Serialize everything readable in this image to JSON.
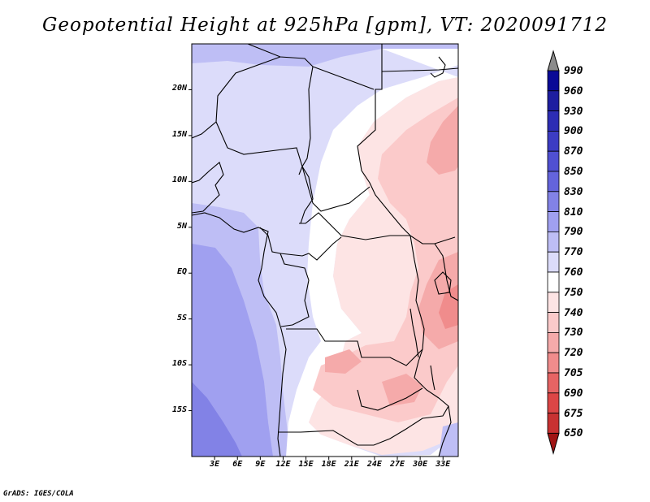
{
  "title": "Geopotential Height at 925hPa [gpm], VT: 2020091712",
  "credit": "GrADS: IGES/COLA",
  "lat_labels": [
    {
      "text": "20N",
      "lat": 20
    },
    {
      "text": "15N",
      "lat": 15
    },
    {
      "text": "10N",
      "lat": 10
    },
    {
      "text": "5N",
      "lat": 5
    },
    {
      "text": "EQ",
      "lat": 0
    },
    {
      "text": "5S",
      "lat": -5
    },
    {
      "text": "10S",
      "lat": -10
    },
    {
      "text": "15S",
      "lat": -15
    }
  ],
  "lon_labels": [
    {
      "text": "3E",
      "lon": 3
    },
    {
      "text": "6E",
      "lon": 6
    },
    {
      "text": "9E",
      "lon": 9
    },
    {
      "text": "12E",
      "lon": 12
    },
    {
      "text": "15E",
      "lon": 15
    },
    {
      "text": "18E",
      "lon": 18
    },
    {
      "text": "21E",
      "lon": 21
    },
    {
      "text": "24E",
      "lon": 24
    },
    {
      "text": "27E",
      "lon": 27
    },
    {
      "text": "30E",
      "lon": 30
    },
    {
      "text": "33E",
      "lon": 33
    }
  ],
  "extent": {
    "lon_min": 0,
    "lon_max": 35,
    "lat_min": -20,
    "lat_max": 25
  },
  "colorbar": [
    {
      "label": "990",
      "color": "#0a0a96"
    },
    {
      "label": "960",
      "color": "#1e1ea0"
    },
    {
      "label": "930",
      "color": "#2d2db4"
    },
    {
      "label": "900",
      "color": "#3c3cc3"
    },
    {
      "label": "870",
      "color": "#5050d2"
    },
    {
      "label": "850",
      "color": "#6464dc"
    },
    {
      "label": "830",
      "color": "#8282e6"
    },
    {
      "label": "810",
      "color": "#a0a0f0"
    },
    {
      "label": "790",
      "color": "#bebef5"
    },
    {
      "label": "770",
      "color": "#dcdcfa"
    },
    {
      "label": "760",
      "color": "#ffffff"
    },
    {
      "label": "750",
      "color": "#fde4e4"
    },
    {
      "label": "740",
      "color": "#fbcaca"
    },
    {
      "label": "730",
      "color": "#f5aaaa"
    },
    {
      "label": "720",
      "color": "#f08c8c"
    },
    {
      "label": "705",
      "color": "#e66464"
    },
    {
      "label": "690",
      "color": "#dc4646"
    },
    {
      "label": "675",
      "color": "#c83232"
    },
    {
      "label": "650",
      "color": "#b41e1e"
    }
  ],
  "colorbar_top_color": "#8c8c8c",
  "colorbar_bottom_color": "#a01414"
}
